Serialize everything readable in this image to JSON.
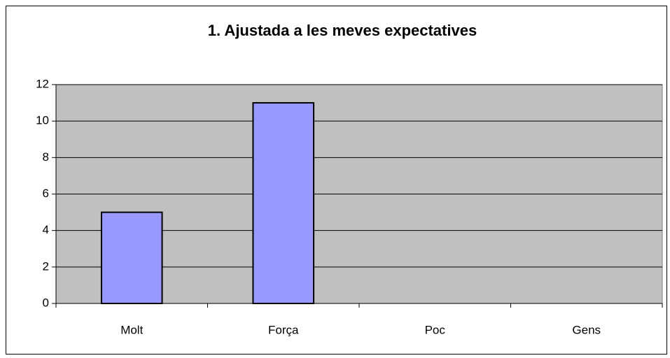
{
  "chart_data": {
    "type": "bar",
    "title": "1. Ajustada a les meves expectatives",
    "categories": [
      "Molt",
      "Força",
      "Poc",
      "Gens"
    ],
    "values": [
      5,
      11,
      0,
      0
    ],
    "color": "#9999ff",
    "ylim": [
      0,
      12
    ],
    "yticks": [
      0,
      2,
      4,
      6,
      8,
      10,
      12
    ],
    "grid": true
  }
}
